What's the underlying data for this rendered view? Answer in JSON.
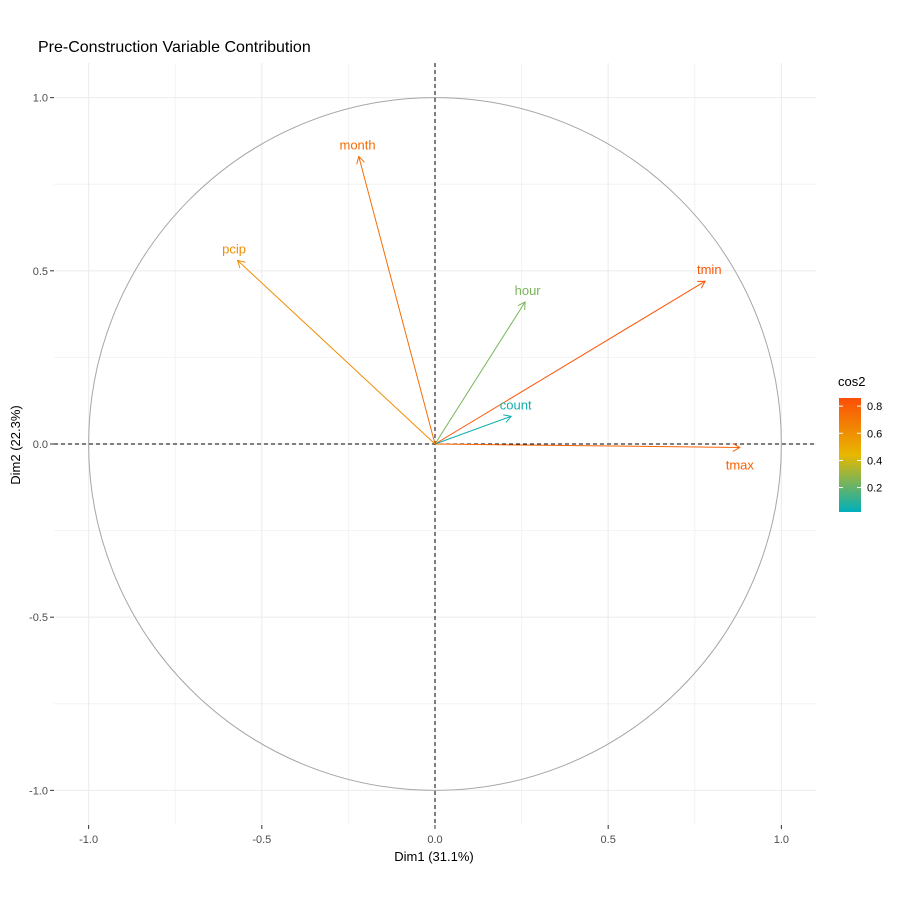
{
  "chart_data": {
    "type": "scatter",
    "title": "Pre-Construction Variable Contribution",
    "xlabel": "Dim1 (31.1%)",
    "ylabel": "Dim2 (22.3%)",
    "xlim": [
      -1.1,
      1.1
    ],
    "ylim": [
      -1.1,
      1.1
    ],
    "x_ticks": [
      -1.0,
      -0.5,
      0.0,
      0.5,
      1.0
    ],
    "y_ticks": [
      -1.0,
      -0.5,
      0.0,
      0.5,
      1.0
    ],
    "x_tick_labels": [
      "-1.0",
      "-0.5",
      "0.0",
      "0.5",
      "1.0"
    ],
    "y_tick_labels": [
      "-1.0",
      "-0.5",
      "0.0",
      "0.5",
      "1.0"
    ],
    "grid": true,
    "unit_circle": true,
    "reference_lines": [
      0,
      0
    ],
    "variables": [
      {
        "name": "month",
        "x": -0.22,
        "y": 0.83,
        "cos2": 0.74
      },
      {
        "name": "pcip",
        "x": -0.57,
        "y": 0.53,
        "cos2": 0.61
      },
      {
        "name": "hour",
        "x": 0.26,
        "y": 0.41,
        "cos2": 0.24
      },
      {
        "name": "tmin",
        "x": 0.78,
        "y": 0.47,
        "cos2": 0.83
      },
      {
        "name": "count",
        "x": 0.22,
        "y": 0.08,
        "cos2": 0.05
      },
      {
        "name": "tmax",
        "x": 0.88,
        "y": -0.01,
        "cos2": 0.78
      }
    ],
    "legend": {
      "title": "cos2",
      "placement": "right",
      "range": [
        0.02,
        0.86
      ],
      "ticks": [
        0.2,
        0.4,
        0.6,
        0.8
      ],
      "tick_labels": [
        "0.2",
        "0.4",
        "0.6",
        "0.8"
      ],
      "gradient_colors": [
        "#00AFBB",
        "#E7B800",
        "#FC4E07"
      ]
    }
  }
}
